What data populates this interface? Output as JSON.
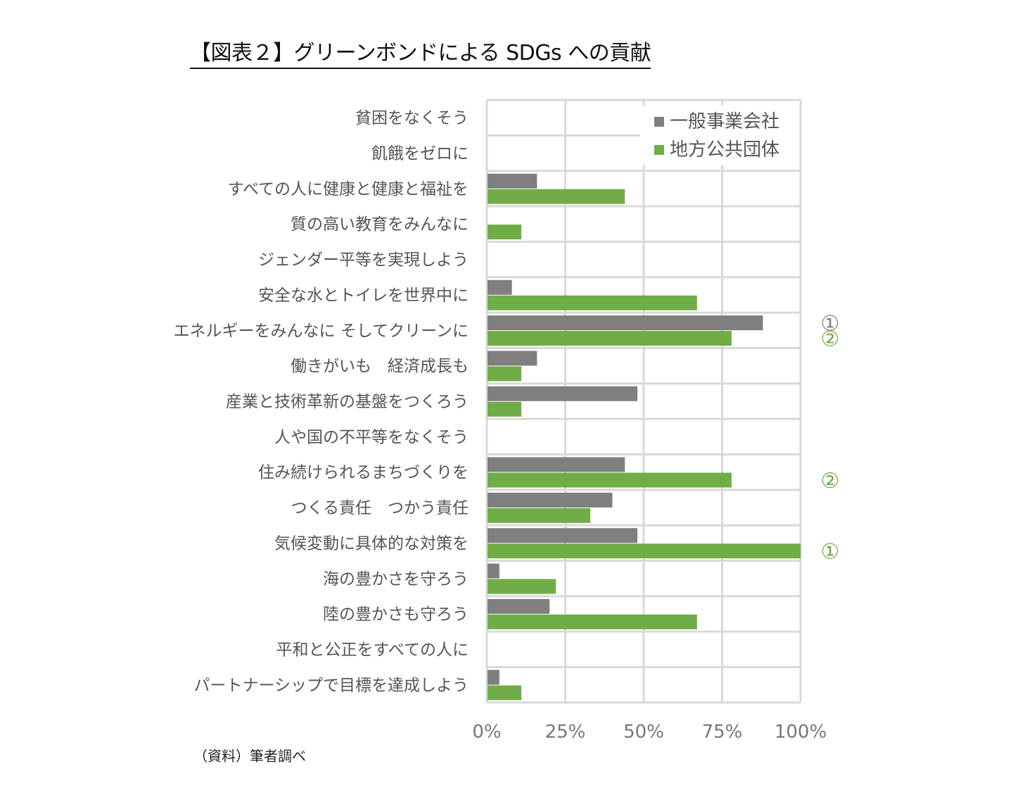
{
  "title": "【図表２】グリーンボンドによる SDGs への貢献",
  "source": "（資料）筆者調べ",
  "colors": {
    "company": "#7f7f7f",
    "municipal": "#70ad47",
    "grid": "#d9d9d9"
  },
  "chart_data": {
    "type": "bar",
    "orientation": "horizontal",
    "categories": [
      "貧困をなくそう",
      "飢餓をゼロに",
      "すべての人に健康と健康と福祉を",
      "質の高い教育をみんなに",
      "ジェンダー平等を実現しよう",
      "安全な水とトイレを世界中に",
      "エネルギーをみんなに そしてクリーンに",
      "働きがいも　経済成長も",
      "産業と技術革新の基盤をつくろう",
      "人や国の不平等をなくそう",
      "住み続けられるまちづくりを",
      "つくる責任　つかう責任",
      "気候変動に具体的な対策を",
      "海の豊かさを守ろう",
      "陸の豊かさも守ろう",
      "平和と公正をすべての人に",
      "パートナーシップで目標を達成しよう"
    ],
    "series": [
      {
        "name": "一般事業会社",
        "color": "#7f7f7f",
        "values": [
          0,
          0,
          16,
          0,
          0,
          8,
          88,
          16,
          48,
          0,
          44,
          40,
          48,
          4,
          20,
          0,
          4
        ]
      },
      {
        "name": "地方公共団体",
        "color": "#70ad47",
        "values": [
          0,
          0,
          44,
          11,
          0,
          67,
          78,
          11,
          11,
          0,
          78,
          33,
          100,
          22,
          67,
          0,
          11
        ]
      }
    ],
    "xlim": [
      0,
      100
    ],
    "x_ticks": [
      "0%",
      "25%",
      "50%",
      "75%",
      "100%"
    ],
    "grid": true,
    "legend_position": "top-right",
    "annotations": [
      {
        "category_index": 6,
        "series": 0,
        "text": "①"
      },
      {
        "category_index": 6,
        "series": 1,
        "text": "②"
      },
      {
        "category_index": 10,
        "series": 1,
        "text": "②"
      },
      {
        "category_index": 12,
        "series": 1,
        "text": "①"
      }
    ]
  }
}
